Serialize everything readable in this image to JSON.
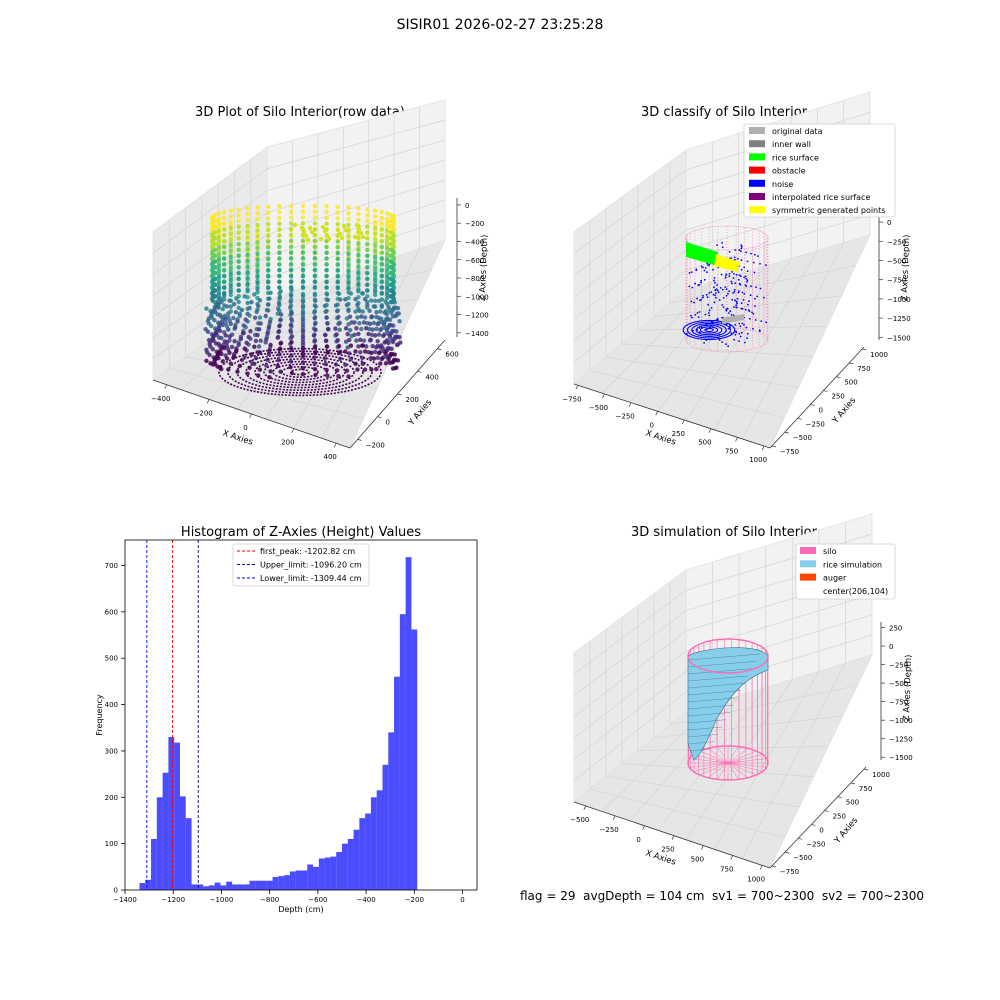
{
  "figure_title": "SISIR01 2026-02-27 23:25:28",
  "status_line": "flag = 29  avgDepth = 104 cm  sv1 = 700~2300  sv2 = 700~2300",
  "chart_data": [
    {
      "type": "scatter",
      "title": "3D Plot of Silo Interior(row data)",
      "xlabel": "X Axies",
      "ylabel": "Y Axies",
      "zlabel": "Z Axies (Depth)",
      "x_ticks": [
        "−400",
        "−200",
        "0",
        "200",
        "400"
      ],
      "y_ticks": [
        "−200",
        "0",
        "200",
        "400",
        "600"
      ],
      "z_ticks": [
        "0",
        "−200",
        "−400",
        "−600",
        "−800",
        "−1000",
        "−1200",
        "−1400"
      ],
      "colormap": "viridis"
    },
    {
      "type": "scatter",
      "title": "3D classify of Silo Interior",
      "xlabel": "X Axies",
      "ylabel": "Y Axies",
      "zlabel": "Z Axies (Depth)",
      "x_ticks": [
        "−750",
        "−500",
        "−250",
        "0",
        "250",
        "500",
        "750",
        "1000"
      ],
      "y_ticks": [
        "−750",
        "−500",
        "−250",
        "0",
        "250",
        "500",
        "750",
        "1000"
      ],
      "z_ticks": [
        "0",
        "−250",
        "−500",
        "−750",
        "−1000",
        "−1250",
        "−1500"
      ],
      "legend": [
        {
          "label": "original data",
          "color": "#b0b0b0"
        },
        {
          "label": "inner wall",
          "color": "#808080"
        },
        {
          "label": "rice surface",
          "color": "#00ff00"
        },
        {
          "label": "obstacle",
          "color": "#ff0000"
        },
        {
          "label": "noise",
          "color": "#0000ff"
        },
        {
          "label": "interpolated rice surface",
          "color": "#800080"
        },
        {
          "label": "symmetric generated points",
          "color": "#ffff00"
        }
      ],
      "legend_position": "top-right"
    },
    {
      "type": "bar",
      "title": "Histogram of Z-Axies (Height) Values",
      "xlabel": "Depth (cm)",
      "ylabel": "Frequency",
      "xlim": [
        -1400,
        60
      ],
      "ylim": [
        0,
        755
      ],
      "x_ticks": [
        -1400,
        -1200,
        -1000,
        -800,
        -600,
        -400,
        -200,
        0
      ],
      "y_ticks": [
        0,
        100,
        200,
        300,
        400,
        500,
        600,
        700
      ],
      "bin_width": 24,
      "bin_start": -1340,
      "values": [
        15,
        22,
        110,
        200,
        253,
        330,
        318,
        202,
        155,
        12,
        12,
        8,
        10,
        16,
        10,
        18,
        12,
        12,
        12,
        20,
        20,
        20,
        20,
        28,
        30,
        32,
        40,
        42,
        42,
        55,
        50,
        68,
        70,
        72,
        82,
        100,
        110,
        130,
        155,
        165,
        200,
        215,
        270,
        340,
        460,
        595,
        718,
        562
      ],
      "bar_color": "#0000ff",
      "vlines": [
        {
          "label": "first_peak: -1202.82 cm",
          "x": -1202.82,
          "color": "#ff0000"
        },
        {
          "label": "Upper_limit: -1096.20 cm",
          "x": -1096.2,
          "color": "#00008b"
        },
        {
          "label": "Lower_limit: -1309.44 cm",
          "x": -1309.44,
          "color": "#0000ff"
        }
      ],
      "legend_position": "top-center"
    },
    {
      "type": "surface",
      "title": "3D simulation of Silo Interior",
      "xlabel": "X Axies",
      "ylabel": "Y Axies",
      "zlabel": "Z Axies (Depth)",
      "x_ticks": [
        "−500",
        "−250",
        "0",
        "250",
        "500",
        "750",
        "1000"
      ],
      "y_ticks": [
        "−750",
        "−500",
        "−250",
        "0",
        "250",
        "500",
        "750",
        "1000"
      ],
      "z_ticks": [
        "250",
        "0",
        "−250",
        "−500",
        "−750",
        "−1000",
        "−1250",
        "−1500"
      ],
      "legend": [
        {
          "label": "silo",
          "color": "#ff69b4"
        },
        {
          "label": "rice simulation",
          "color": "#87ceeb"
        },
        {
          "label": "auger",
          "color": "#ff4500"
        },
        {
          "label": "center(206,104)",
          "color": ""
        }
      ],
      "legend_position": "top-right"
    }
  ]
}
